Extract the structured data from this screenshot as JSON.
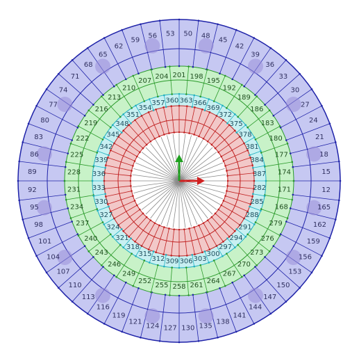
{
  "node_rings": [
    [
      "12",
      "165",
      "162",
      "159",
      "156",
      "153",
      "150",
      "147",
      "144",
      "141",
      "138",
      "135",
      "130",
      "127",
      "124",
      "121",
      "119",
      "116",
      "113",
      "110",
      "107",
      "104",
      "101",
      "98",
      "95",
      "92",
      "89",
      "86",
      "83",
      "80",
      "77",
      "74",
      "71",
      "68",
      "65",
      "62",
      "59",
      "56",
      "53",
      "50",
      "48",
      "45",
      "42",
      "39",
      "36",
      "33",
      "30",
      "27",
      "24",
      "21",
      "18",
      "15"
    ],
    [
      "171",
      "168",
      "279",
      "276",
      "273",
      "270",
      "267",
      "264",
      "261",
      "258",
      "255",
      "252",
      "249",
      "246",
      "243",
      "240",
      "237",
      "234",
      "231",
      "228",
      "225",
      "222",
      "219",
      "216",
      "213",
      "210",
      "207",
      "204",
      "201",
      "198",
      "195",
      "192",
      "189",
      "186",
      "183",
      "180",
      "177",
      "174"
    ],
    [
      "282",
      "285",
      "288",
      "291",
      "294",
      "297",
      "300",
      "303",
      "306",
      "309",
      "312",
      "315",
      "318",
      "321",
      "324",
      "327",
      "330",
      "333",
      "336",
      "339",
      "342",
      "345",
      "348",
      "351",
      "354",
      "357",
      "360",
      "363",
      "366",
      "369",
      "372",
      "375",
      "378",
      "381",
      "384",
      "387"
    ]
  ]
}
